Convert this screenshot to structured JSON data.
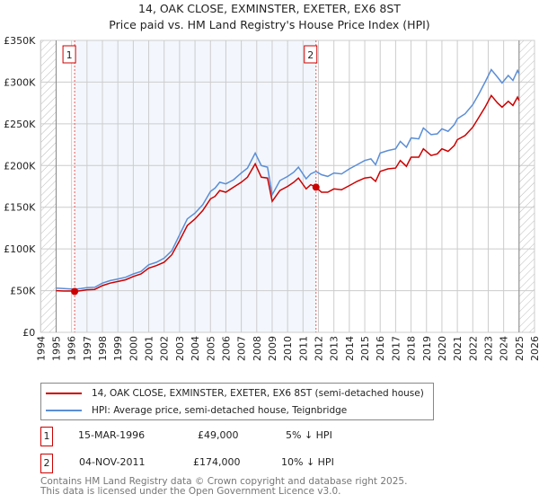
{
  "title": "14, OAK CLOSE, EXMINSTER, EXETER, EX6 8ST",
  "subtitle": "Price paid vs. HM Land Registry's House Price Index (HPI)",
  "chart_data": {
    "type": "line",
    "xlim": [
      1994,
      2026
    ],
    "ylim": [
      0,
      350000
    ],
    "yticks": [
      {
        "v": 0,
        "label": "£0"
      },
      {
        "v": 50000,
        "label": "£50K"
      },
      {
        "v": 100000,
        "label": "£100K"
      },
      {
        "v": 150000,
        "label": "£150K"
      },
      {
        "v": 200000,
        "label": "£200K"
      },
      {
        "v": 250000,
        "label": "£250K"
      },
      {
        "v": 300000,
        "label": "£300K"
      },
      {
        "v": 350000,
        "label": "£350K"
      }
    ],
    "xticks": [
      "1994",
      "1995",
      "1996",
      "1997",
      "1998",
      "1999",
      "2000",
      "2001",
      "2002",
      "2003",
      "2004",
      "2005",
      "2006",
      "2007",
      "2008",
      "2009",
      "2010",
      "2011",
      "2012",
      "2013",
      "2014",
      "2015",
      "2016",
      "2017",
      "2018",
      "2019",
      "2020",
      "2021",
      "2022",
      "2023",
      "2024",
      "2025",
      "2026"
    ],
    "data_range": [
      1995,
      2025
    ],
    "shaded_range": [
      1996.2,
      2011.84
    ],
    "series": [
      {
        "name": "14, OAK CLOSE, EXMINSTER, EXETER, EX6 8ST (semi-detached house)",
        "color": "#cc0000",
        "x": [
          1995,
          1995.5,
          1996,
          1996.2,
          1996.6,
          1997,
          1997.5,
          1998,
          1998.5,
          1999,
          1999.5,
          2000,
          2000.5,
          2001,
          2001.5,
          2002,
          2002.5,
          2003,
          2003.5,
          2004,
          2004.5,
          2005,
          2005.3,
          2005.6,
          2006,
          2006.5,
          2007,
          2007.4,
          2007.9,
          2008.3,
          2008.7,
          2009.0,
          2009.5,
          2010,
          2010.4,
          2010.7,
          2011.2,
          2011.5,
          2011.84,
          2012.2,
          2012.6,
          2013,
          2013.5,
          2014,
          2014.5,
          2015,
          2015.4,
          2015.7,
          2016,
          2016.5,
          2017,
          2017.3,
          2017.7,
          2018,
          2018.5,
          2018.8,
          2019.3,
          2019.7,
          2020,
          2020.4,
          2020.8,
          2021,
          2021.5,
          2022,
          2022.4,
          2022.8,
          2023.2,
          2023.6,
          2023.9,
          2024.3,
          2024.6,
          2024.9,
          2025
        ],
        "y": [
          50000,
          49500,
          49500,
          49000,
          50000,
          51000,
          51500,
          56000,
          59000,
          61000,
          63000,
          67000,
          70000,
          77000,
          80000,
          84000,
          93000,
          110000,
          128000,
          136000,
          146000,
          160000,
          163000,
          170000,
          168000,
          174000,
          180000,
          186000,
          202000,
          186000,
          185000,
          157000,
          170000,
          175000,
          180000,
          185000,
          172000,
          177000,
          174000,
          168000,
          168000,
          172000,
          171000,
          176000,
          181000,
          185000,
          186000,
          181000,
          193000,
          196000,
          197000,
          206000,
          199000,
          210000,
          210000,
          220000,
          212000,
          214000,
          220000,
          217000,
          224000,
          231000,
          236000,
          246000,
          258000,
          270000,
          284000,
          275000,
          270000,
          277000,
          272000,
          282000,
          278000
        ]
      },
      {
        "name": "HPI: Average price, semi-detached house, Teignbridge",
        "color": "#5b8ed6",
        "x": [
          1995,
          1995.5,
          1996,
          1996.2,
          1996.6,
          1997,
          1997.5,
          1998,
          1998.5,
          1999,
          1999.5,
          2000,
          2000.5,
          2001,
          2001.5,
          2002,
          2002.5,
          2003,
          2003.5,
          2004,
          2004.5,
          2005,
          2005.3,
          2005.6,
          2006,
          2006.5,
          2007,
          2007.4,
          2007.9,
          2008.3,
          2008.7,
          2009.0,
          2009.5,
          2010,
          2010.4,
          2010.7,
          2011.2,
          2011.5,
          2011.84,
          2012.2,
          2012.6,
          2013,
          2013.5,
          2014,
          2014.5,
          2015,
          2015.4,
          2015.7,
          2016,
          2016.5,
          2017,
          2017.3,
          2017.7,
          2018,
          2018.5,
          2018.8,
          2019.3,
          2019.7,
          2020,
          2020.4,
          2020.8,
          2021,
          2021.5,
          2022,
          2022.4,
          2022.8,
          2023.2,
          2023.6,
          2023.9,
          2024.3,
          2024.6,
          2024.9,
          2025
        ],
        "y": [
          53000,
          52500,
          52000,
          51700,
          52500,
          53500,
          54000,
          59000,
          62000,
          64000,
          66000,
          70000,
          73000,
          81000,
          84000,
          89000,
          98000,
          117000,
          136000,
          143000,
          153000,
          169000,
          173000,
          180000,
          178000,
          183000,
          191000,
          197000,
          215000,
          200000,
          198000,
          165000,
          182000,
          187000,
          192000,
          198000,
          184000,
          190000,
          193000,
          189000,
          187000,
          191000,
          190000,
          196000,
          201000,
          206000,
          208000,
          201000,
          215000,
          218000,
          220000,
          229000,
          222000,
          233000,
          232000,
          245000,
          237000,
          238000,
          244000,
          241000,
          249000,
          256000,
          262000,
          273000,
          286000,
          300000,
          315000,
          306000,
          299000,
          308000,
          302000,
          314000,
          310000
        ]
      }
    ],
    "sales": [
      {
        "id": "1",
        "x": 1996.2,
        "price": 49000
      },
      {
        "id": "2",
        "x": 2011.84,
        "price": 174000
      }
    ]
  },
  "transactions": [
    {
      "id": "1",
      "date": "15-MAR-1996",
      "price": "£49,000",
      "hpi": "5% ↓ HPI"
    },
    {
      "id": "2",
      "date": "04-NOV-2011",
      "price": "£174,000",
      "hpi": "10% ↓ HPI"
    }
  ],
  "footer": {
    "line1": "Contains HM Land Registry data © Crown copyright and database right 2025.",
    "line2": "This data is licensed under the Open Government Licence v3.0."
  }
}
